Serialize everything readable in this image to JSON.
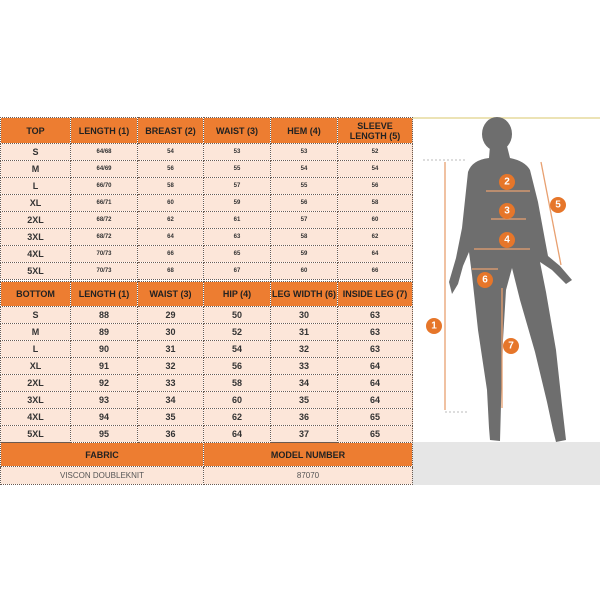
{
  "top_table": {
    "headers": [
      "TOP",
      "LENGTH (1)",
      "BREAST (2)",
      "WAIST (3)",
      "HEM (4)",
      "SLEEVE LENGTH (5)"
    ],
    "rows": [
      [
        "S",
        "64/68",
        "54",
        "53",
        "53",
        "52"
      ],
      [
        "M",
        "64/69",
        "56",
        "55",
        "54",
        "54"
      ],
      [
        "L",
        "66/70",
        "58",
        "57",
        "55",
        "56"
      ],
      [
        "XL",
        "66/71",
        "60",
        "59",
        "56",
        "58"
      ],
      [
        "2XL",
        "68/72",
        "62",
        "61",
        "57",
        "60"
      ],
      [
        "3XL",
        "68/72",
        "64",
        "63",
        "58",
        "62"
      ],
      [
        "4XL",
        "70/73",
        "66",
        "65",
        "59",
        "64"
      ],
      [
        "5XL",
        "70/73",
        "68",
        "67",
        "60",
        "66"
      ]
    ]
  },
  "bottom_table": {
    "headers": [
      "BOTTOM",
      "LENGTH (1)",
      "WAIST (3)",
      "HIP (4)",
      "LEG WIDTH (6)",
      "INSIDE LEG (7)"
    ],
    "rows": [
      [
        "S",
        "88",
        "29",
        "50",
        "30",
        "63"
      ],
      [
        "M",
        "89",
        "30",
        "52",
        "31",
        "63"
      ],
      [
        "L",
        "90",
        "31",
        "54",
        "32",
        "63"
      ],
      [
        "XL",
        "91",
        "32",
        "56",
        "33",
        "64"
      ],
      [
        "2XL",
        "92",
        "33",
        "58",
        "34",
        "64"
      ],
      [
        "3XL",
        "93",
        "34",
        "60",
        "35",
        "64"
      ],
      [
        "4XL",
        "94",
        "35",
        "62",
        "36",
        "65"
      ],
      [
        "5XL",
        "95",
        "36",
        "64",
        "37",
        "65"
      ]
    ]
  },
  "footer": {
    "fabric_label": "FABRIC",
    "fabric_value": "VISCON DOUBLEKNIT",
    "model_label": "MODEL NUMBER",
    "model_value": "87070"
  },
  "figure": {
    "markers": [
      "1",
      "2",
      "3",
      "4",
      "5",
      "6",
      "7"
    ],
    "accent_color": "#e6762a",
    "header_color": "#ed7d31",
    "cell_color": "#fce6d9"
  }
}
